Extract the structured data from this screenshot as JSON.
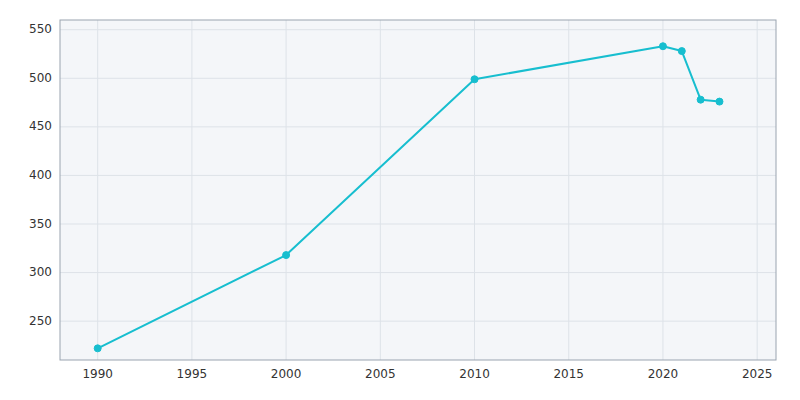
{
  "chart_data": {
    "type": "line",
    "x": [
      1990,
      2000,
      2010,
      2020,
      2021,
      2022,
      2023
    ],
    "values": [
      222,
      318,
      499,
      533,
      528,
      478,
      476
    ],
    "color": "#17BECF",
    "marker": "circle",
    "xlim": [
      1988,
      2026
    ],
    "ylim": [
      210,
      560
    ],
    "xticks": [
      1990,
      1995,
      2000,
      2005,
      2010,
      2015,
      2020,
      2025
    ],
    "yticks": [
      250,
      300,
      350,
      400,
      450,
      500,
      550
    ],
    "grid": true
  }
}
